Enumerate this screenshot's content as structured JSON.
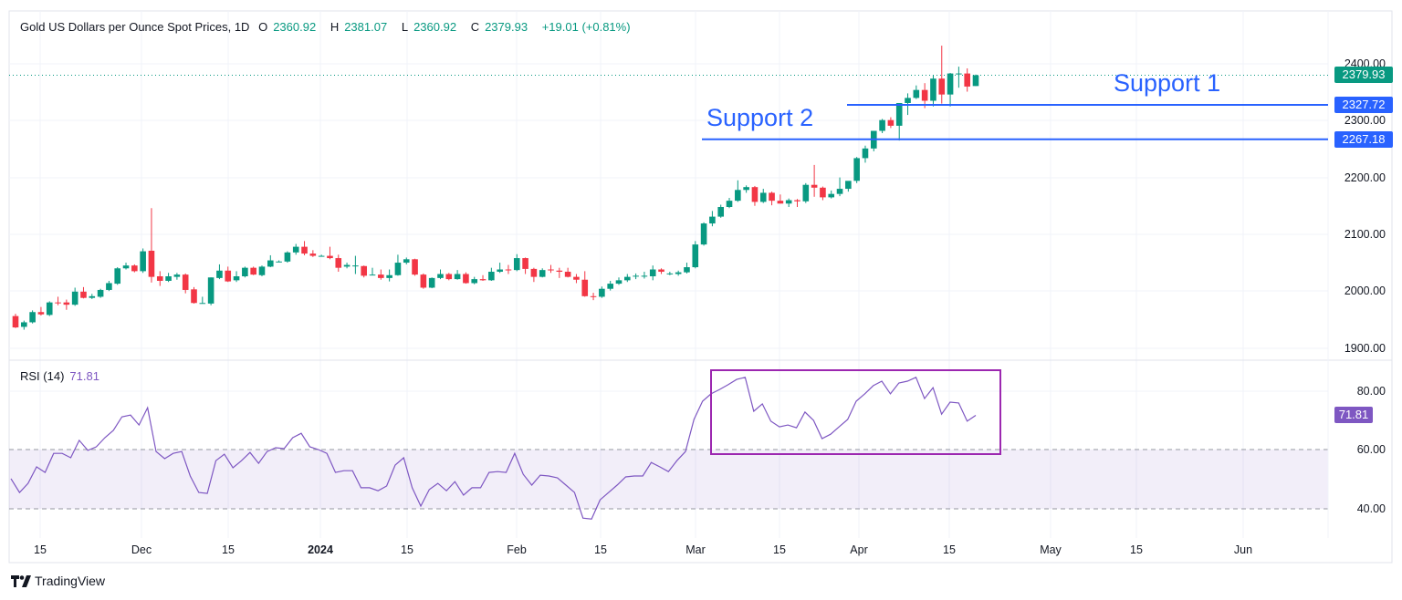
{
  "header": {
    "title": "Gold US Dollars per Ounce Spot Prices, 1D",
    "open_label": "O",
    "open": "2360.92",
    "high_label": "H",
    "high": "2381.07",
    "low_label": "L",
    "low": "2360.92",
    "close_label": "C",
    "close": "2379.93",
    "change": "+19.01 (+0.81%)"
  },
  "rsi_header": {
    "label": "RSI (14)",
    "value": "71.81"
  },
  "price_axis": [
    "2400.00",
    "2300.00",
    "2200.00",
    "2100.00",
    "2000.00",
    "1900.00"
  ],
  "rsi_axis": [
    "80.00",
    "60.00",
    "40.00"
  ],
  "time_axis": [
    "15",
    "Dec",
    "15",
    "2024",
    "15",
    "Feb",
    "15",
    "Mar",
    "15",
    "Apr",
    "15",
    "May",
    "15",
    "Jun"
  ],
  "badges": {
    "last_price": "2379.93",
    "support1": "2327.72",
    "support2": "2267.18",
    "rsi": "71.81"
  },
  "annotations": {
    "support1": "Support 1",
    "support2": "Support 2"
  },
  "brand": "TradingView",
  "colors": {
    "up": "#089981",
    "down": "#f23645",
    "support": "#2962ff",
    "rsi": "#7e57c2"
  },
  "chart_data": {
    "type": "candlestick",
    "title": "Gold US Dollars per Ounce Spot Prices, 1D",
    "ylim": [
      1880,
      2440
    ],
    "support_levels": [
      2327.72,
      2267.18
    ],
    "ohlc": [
      [
        1956,
        1960,
        1935,
        1936
      ],
      [
        1937,
        1948,
        1932,
        1945
      ],
      [
        1945,
        1966,
        1943,
        1963
      ],
      [
        1963,
        1972,
        1957,
        1959
      ],
      [
        1958,
        1982,
        1956,
        1980
      ],
      [
        1980,
        1990,
        1975,
        1979
      ],
      [
        1980,
        1985,
        1967,
        1976
      ],
      [
        1976,
        2006,
        1974,
        1999
      ],
      [
        1999,
        2007,
        1987,
        1988
      ],
      [
        1988,
        1995,
        1986,
        1991
      ],
      [
        1990,
        2004,
        1988,
        2002
      ],
      [
        2002,
        2018,
        2000,
        2014
      ],
      [
        2013,
        2042,
        2011,
        2040
      ],
      [
        2040,
        2050,
        2038,
        2045
      ],
      [
        2045,
        2047,
        2033,
        2035
      ],
      [
        2035,
        2075,
        2032,
        2070
      ],
      [
        2071,
        2146,
        2015,
        2025
      ],
      [
        2026,
        2035,
        2009,
        2018
      ],
      [
        2018,
        2032,
        2016,
        2026
      ],
      [
        2025,
        2032,
        2020,
        2029
      ],
      [
        2029,
        2031,
        1996,
        2002
      ],
      [
        2003,
        2007,
        1978,
        1979
      ],
      [
        1979,
        1990,
        1978,
        1979
      ],
      [
        1978,
        2024,
        1975,
        2024
      ],
      [
        2023,
        2047,
        2021,
        2036
      ],
      [
        2036,
        2043,
        2016,
        2017
      ],
      [
        2019,
        2035,
        2016,
        2026
      ],
      [
        2026,
        2043,
        2024,
        2041
      ],
      [
        2041,
        2043,
        2028,
        2029
      ],
      [
        2028,
        2045,
        2026,
        2043
      ],
      [
        2043,
        2063,
        2042,
        2054
      ],
      [
        2052,
        2054,
        2051,
        2052
      ],
      [
        2052,
        2070,
        2050,
        2068
      ],
      [
        2068,
        2083,
        2064,
        2078
      ],
      [
        2078,
        2088,
        2063,
        2066
      ],
      [
        2066,
        2072,
        2060,
        2062
      ],
      [
        2062,
        2064,
        2061,
        2062
      ],
      [
        2062,
        2078,
        2056,
        2058
      ],
      [
        2058,
        2064,
        2034,
        2041
      ],
      [
        2043,
        2050,
        2040,
        2046
      ],
      [
        2045,
        2062,
        2030,
        2045
      ],
      [
        2044,
        2045,
        2024,
        2027
      ],
      [
        2029,
        2041,
        2028,
        2029
      ],
      [
        2029,
        2038,
        2020,
        2023
      ],
      [
        2023,
        2038,
        2017,
        2028
      ],
      [
        2028,
        2064,
        2027,
        2050
      ],
      [
        2050,
        2059,
        2047,
        2056
      ],
      [
        2056,
        2057,
        2027,
        2029
      ],
      [
        2029,
        2031,
        2004,
        2006
      ],
      [
        2006,
        2024,
        2005,
        2023
      ],
      [
        2023,
        2038,
        2021,
        2030
      ],
      [
        2030,
        2032,
        2019,
        2021
      ],
      [
        2021,
        2037,
        2020,
        2030
      ],
      [
        2030,
        2033,
        2013,
        2014
      ],
      [
        2014,
        2025,
        2012,
        2021
      ],
      [
        2021,
        2028,
        2018,
        2019
      ],
      [
        2019,
        2041,
        2018,
        2034
      ],
      [
        2034,
        2050,
        2032,
        2038
      ],
      [
        2038,
        2046,
        2030,
        2037
      ],
      [
        2037,
        2065,
        2035,
        2058
      ],
      [
        2058,
        2059,
        2030,
        2039
      ],
      [
        2039,
        2041,
        2016,
        2025
      ],
      [
        2025,
        2040,
        2024,
        2037
      ],
      [
        2038,
        2046,
        2032,
        2037
      ],
      [
        2036,
        2041,
        2023,
        2034
      ],
      [
        2034,
        2041,
        2024,
        2025
      ],
      [
        2025,
        2030,
        2014,
        2020
      ],
      [
        2020,
        2035,
        1990,
        1991
      ],
      [
        1991,
        1997,
        1984,
        1990
      ],
      [
        1990,
        2008,
        1988,
        2004
      ],
      [
        2004,
        2018,
        2001,
        2013
      ],
      [
        2013,
        2024,
        2011,
        2019
      ],
      [
        2019,
        2030,
        2016,
        2025
      ],
      [
        2027,
        2031,
        2021,
        2027
      ],
      [
        2027,
        2034,
        2022,
        2027
      ],
      [
        2026,
        2045,
        2019,
        2038
      ],
      [
        2038,
        2040,
        2030,
        2034
      ],
      [
        2031,
        2034,
        2028,
        2031
      ],
      [
        2030,
        2036,
        2027,
        2033
      ],
      [
        2033,
        2050,
        2031,
        2042
      ],
      [
        2042,
        2088,
        2040,
        2082
      ],
      [
        2082,
        2121,
        2080,
        2119
      ],
      [
        2119,
        2141,
        2114,
        2131
      ],
      [
        2131,
        2152,
        2129,
        2148
      ],
      [
        2148,
        2164,
        2146,
        2159
      ],
      [
        2159,
        2195,
        2157,
        2178
      ],
      [
        2178,
        2186,
        2173,
        2183
      ],
      [
        2183,
        2185,
        2150,
        2157
      ],
      [
        2157,
        2180,
        2155,
        2173
      ],
      [
        2173,
        2175,
        2151,
        2159
      ],
      [
        2159,
        2170,
        2154,
        2154
      ],
      [
        2154,
        2163,
        2148,
        2160
      ],
      [
        2160,
        2162,
        2148,
        2158
      ],
      [
        2158,
        2190,
        2155,
        2187
      ],
      [
        2187,
        2222,
        2166,
        2182
      ],
      [
        2182,
        2184,
        2160,
        2165
      ],
      [
        2165,
        2177,
        2163,
        2171
      ],
      [
        2171,
        2200,
        2167,
        2180
      ],
      [
        2180,
        2192,
        2175,
        2194
      ],
      [
        2194,
        2236,
        2190,
        2234
      ],
      [
        2234,
        2256,
        2226,
        2251
      ],
      [
        2251,
        2282,
        2246,
        2282
      ],
      [
        2282,
        2303,
        2278,
        2301
      ],
      [
        2301,
        2306,
        2287,
        2291
      ],
      [
        2291,
        2331,
        2265,
        2331
      ],
      [
        2331,
        2348,
        2310,
        2340
      ],
      [
        2340,
        2362,
        2338,
        2354
      ],
      [
        2354,
        2366,
        2322,
        2335
      ],
      [
        2335,
        2380,
        2325,
        2374
      ],
      [
        2374,
        2432,
        2330,
        2346
      ],
      [
        2346,
        2384,
        2325,
        2383
      ],
      [
        2383,
        2395,
        2358,
        2383
      ],
      [
        2383,
        2392,
        2351,
        2360
      ],
      [
        2360.92,
        2381.07,
        2360.92,
        2379.93
      ]
    ],
    "rsi": {
      "period": 14,
      "ylim": [
        34,
        89
      ],
      "overbought": 60,
      "oversold": 40,
      "values": [
        50.3,
        45.6,
        48.7,
        54.3,
        52.4,
        58.9,
        58.9,
        57.4,
        63.3,
        59.9,
        61.1,
        64.2,
        66.7,
        71.3,
        71.9,
        68.5,
        74.4,
        59.5,
        57.1,
        58.9,
        59.5,
        51.2,
        45.6,
        45.3,
        56.4,
        58.6,
        54.0,
        56.4,
        59.2,
        55.5,
        59.5,
        60.8,
        60.5,
        64.2,
        65.7,
        61.1,
        60.2,
        58.9,
        52.4,
        53.0,
        53.0,
        47.2,
        47.2,
        46.2,
        47.8,
        54.9,
        57.4,
        47.2,
        41.0,
        46.6,
        48.7,
        46.2,
        49.3,
        44.7,
        47.2,
        47.2,
        52.4,
        52.7,
        52.4,
        58.9,
        51.8,
        48.1,
        51.5,
        51.2,
        50.6,
        48.1,
        45.6,
        36.9,
        36.6,
        43.1,
        45.6,
        48.1,
        50.9,
        51.2,
        51.2,
        55.8,
        54.3,
        52.7,
        56.4,
        59.5,
        70.4,
        76.6,
        79.1,
        80.6,
        82.2,
        84.0,
        84.7,
        73.2,
        75.7,
        69.8,
        67.9,
        68.5,
        67.6,
        72.9,
        70.1,
        63.9,
        65.4,
        67.9,
        70.4,
        76.6,
        79.1,
        81.9,
        83.4,
        79.1,
        82.8,
        83.4,
        84.7,
        77.5,
        81.2,
        72.2,
        76.3,
        76.0,
        69.8,
        71.81
      ]
    }
  }
}
